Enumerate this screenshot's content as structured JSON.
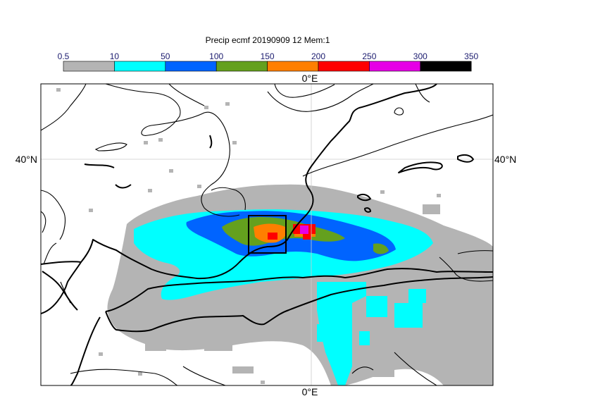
{
  "title": "Precip ecmf 20190909 12 Mem:1",
  "colorbar": {
    "ticks": [
      "0.5",
      "10",
      "50",
      "100",
      "150",
      "200",
      "250",
      "300",
      "350"
    ],
    "colors": [
      "#b4b4b4",
      "#00ffff",
      "#0064ff",
      "#64a01e",
      "#ff7f00",
      "#ff0000",
      "#e600e6",
      "#000000"
    ]
  },
  "axes": {
    "lon_label_top": "0°E",
    "lon_label_bottom": "0°E",
    "lat_label_left": "40°N",
    "lat_label_right": "40°N"
  }
}
